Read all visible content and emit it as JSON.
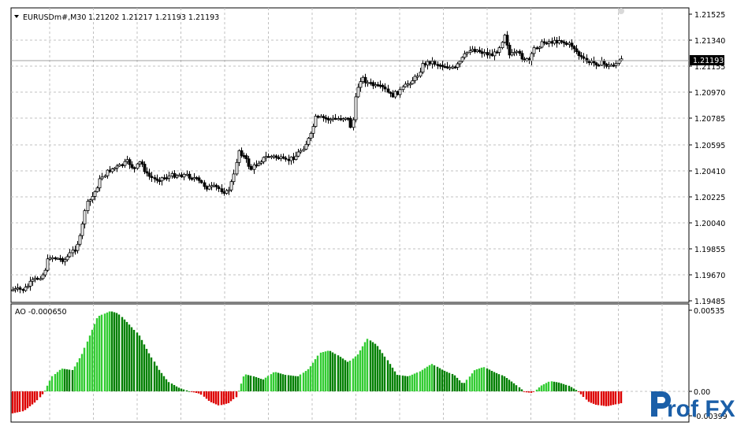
{
  "main_chart": {
    "symbol": "EURUSDm#,M30",
    "ohlc": "1.21202 1.21217 1.21193 1.21193",
    "current_price": "1.21193",
    "price_labels": [
      "1.21525",
      "1.21340",
      "1.21155",
      "1.20970",
      "1.20785",
      "1.20595",
      "1.20410",
      "1.20225",
      "1.20040",
      "1.19855",
      "1.19670",
      "1.19485"
    ]
  },
  "indicator": {
    "label": "AO -0.000650",
    "scale_labels": [
      "0.00535",
      "0.00",
      "-0.00399"
    ]
  },
  "logo": {
    "text": "rof FX"
  },
  "colors": {
    "ao_up": "#33cc33",
    "ao_down_positive": "#008000",
    "ao_negative": "#dd0000",
    "candle_bull": "#ffffff",
    "candle_bear": "#000000",
    "grid": "#c0c0c0",
    "logo": "#1b5fa8"
  }
}
